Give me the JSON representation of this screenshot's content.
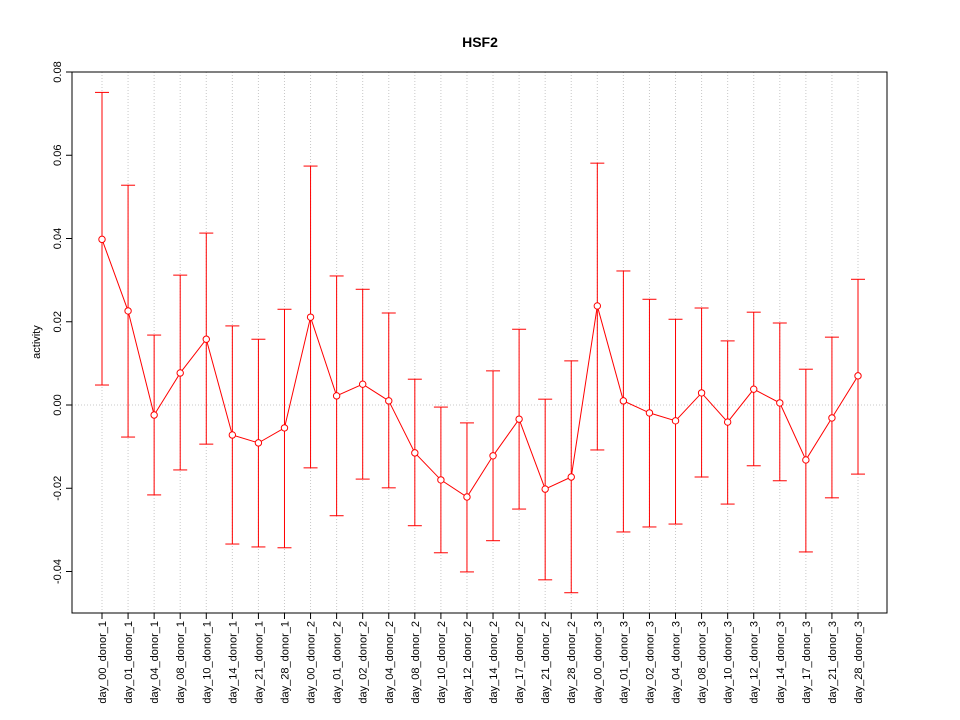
{
  "chart_data": {
    "type": "line",
    "title": "HSF2",
    "xlabel": "",
    "ylabel": "activity",
    "ylim": [
      -0.05,
      0.08
    ],
    "yticks": [
      "-0.04",
      "-0.02",
      "0.00",
      "0.02",
      "0.04",
      "0.06",
      "0.08"
    ],
    "ytick_values": [
      -0.04,
      -0.02,
      0.0,
      0.02,
      0.04,
      0.06,
      0.08
    ],
    "grid": true,
    "color": "#ff0000",
    "categories": [
      "day_00_donor_1",
      "day_01_donor_1",
      "day_04_donor_1",
      "day_08_donor_1",
      "day_10_donor_1",
      "day_14_donor_1",
      "day_21_donor_1",
      "day_28_donor_1",
      "day_00_donor_2",
      "day_01_donor_2",
      "day_02_donor_2",
      "day_04_donor_2",
      "day_08_donor_2",
      "day_10_donor_2",
      "day_12_donor_2",
      "day_14_donor_2",
      "day_17_donor_2",
      "day_21_donor_2",
      "day_28_donor_2",
      "day_00_donor_3",
      "day_01_donor_3",
      "day_02_donor_3",
      "day_04_donor_3",
      "day_08_donor_3",
      "day_10_donor_3",
      "day_12_donor_3",
      "day_14_donor_3",
      "day_17_donor_3",
      "day_21_donor_3",
      "day_28_donor_3"
    ],
    "values": [
      0.0398,
      0.0226,
      -0.0024,
      0.0077,
      0.0158,
      -0.0072,
      -0.0091,
      -0.0055,
      0.0211,
      0.0022,
      0.005,
      0.001,
      -0.0115,
      -0.018,
      -0.0221,
      -0.0122,
      -0.0034,
      -0.0202,
      -0.0173,
      0.0238,
      0.001,
      -0.0019,
      -0.0038,
      0.0029,
      -0.0041,
      0.0038,
      0.0005,
      -0.0132,
      -0.0031,
      0.007
    ],
    "upper": [
      0.0751,
      0.0528,
      0.0168,
      0.0312,
      0.0413,
      0.019,
      0.0158,
      0.023,
      0.0574,
      0.031,
      0.0278,
      0.0221,
      0.0062,
      -0.0005,
      -0.0043,
      0.0082,
      0.0182,
      0.0014,
      0.0106,
      0.0581,
      0.0322,
      0.0254,
      0.0206,
      0.0233,
      0.0154,
      0.0223,
      0.0197,
      0.0086,
      0.0163,
      0.0302
    ],
    "lower": [
      0.0048,
      -0.0077,
      -0.0216,
      -0.0156,
      -0.0094,
      -0.0334,
      -0.0341,
      -0.0343,
      -0.0151,
      -0.0266,
      -0.0178,
      -0.0199,
      -0.029,
      -0.0355,
      -0.0401,
      -0.0326,
      -0.025,
      -0.042,
      -0.0451,
      -0.0108,
      -0.0305,
      -0.0293,
      -0.0286,
      -0.0173,
      -0.0238,
      -0.0146,
      -0.0182,
      -0.0353,
      -0.0223,
      -0.0166
    ]
  }
}
